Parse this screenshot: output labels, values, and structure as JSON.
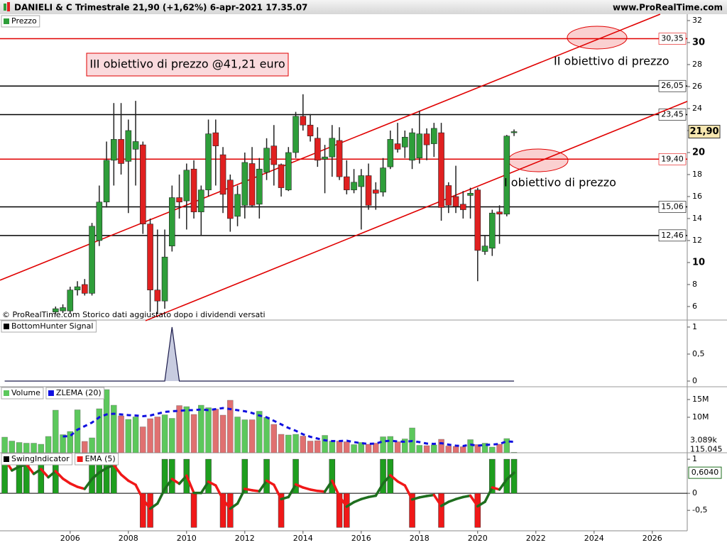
{
  "chart_data": [
    {
      "type": "candlestick",
      "title": "DANIELI & C Trimestrale 21,90 (+1,62%) 6-apr-2021 17.35.07",
      "source": "www.ProRealTime.com",
      "series_name": "Prezzo",
      "footnote": "© ProRealTime.com  Storico dati aggiustato dopo i dividendi versati",
      "x": [
        2003.75,
        2004,
        2004.25,
        2004.5,
        2004.75,
        2005,
        2005.25,
        2005.5,
        2005.75,
        2006,
        2006.25,
        2006.5,
        2006.75,
        2007,
        2007.25,
        2007.5,
        2007.75,
        2008,
        2008.25,
        2008.5,
        2008.75,
        2009,
        2009.25,
        2009.5,
        2009.75,
        2010,
        2010.25,
        2010.5,
        2010.75,
        2011,
        2011.25,
        2011.5,
        2011.75,
        2012,
        2012.25,
        2012.5,
        2012.75,
        2013,
        2013.25,
        2013.5,
        2013.75,
        2014,
        2014.25,
        2014.5,
        2014.75,
        2015,
        2015.25,
        2015.5,
        2015.75,
        2016,
        2016.25,
        2016.5,
        2016.75,
        2017,
        2017.25,
        2017.5,
        2017.75,
        2018,
        2018.25,
        2018.5,
        2018.75,
        2019,
        2019.25,
        2019.5,
        2019.75,
        2020,
        2020.25,
        2020.5,
        2020.75,
        2021,
        2021.25
      ],
      "open": [
        null,
        null,
        null,
        null,
        null,
        null,
        null,
        5.5,
        5.6,
        5.6,
        7.5,
        8,
        7.2,
        12,
        15.5,
        19.3,
        21.2,
        19.2,
        20.3,
        20.7,
        13.5,
        7.5,
        6.5,
        11.5,
        15.9,
        15.6,
        18.5,
        14.6,
        16.6,
        21.8,
        19.8,
        17.5,
        14.2,
        15.2,
        19,
        15.3,
        18.2,
        20.6,
        18.9,
        16.6,
        20,
        23.3,
        22.5,
        21.3,
        19.4,
        19.6,
        21.1,
        17.8,
        16.6,
        16.9,
        17.9,
        16.6,
        16.4,
        18.7,
        20.8,
        20.5,
        19.3,
        19.5,
        21.7,
        20.8,
        21.8,
        17,
        16,
        15.3,
        16.1,
        16.6,
        11,
        11.3,
        14.6,
        14.4,
        21.8
      ],
      "high": [
        null,
        null,
        null,
        null,
        null,
        null,
        null,
        6,
        6.2,
        7.8,
        8.3,
        8.5,
        13.6,
        17,
        21,
        24.5,
        24.5,
        23,
        24.7,
        21,
        14,
        13,
        13,
        17,
        18,
        19,
        19.3,
        17,
        23,
        23,
        20.5,
        18,
        17,
        20,
        20.5,
        19.5,
        21.3,
        22.5,
        19,
        20.5,
        23.7,
        25.3,
        23.5,
        22.3,
        20.7,
        22.5,
        22.3,
        19.3,
        18.5,
        18.5,
        19,
        17.3,
        19.5,
        22,
        22.7,
        22,
        22.2,
        23.8,
        22.2,
        22.7,
        22.7,
        17.3,
        18.8,
        16.5,
        16.8,
        16.8,
        12.5,
        14.8,
        15.2,
        21.6,
        22.1
      ],
      "low": [
        null,
        null,
        null,
        null,
        null,
        null,
        null,
        5.3,
        5.4,
        5.4,
        7,
        7,
        7,
        11.5,
        15,
        17,
        18,
        14.5,
        17,
        12.6,
        5.5,
        5.3,
        5.8,
        11,
        14,
        13,
        14,
        12.5,
        16,
        17,
        14.5,
        12.8,
        13.3,
        14,
        15,
        14,
        17.5,
        17,
        16,
        16.5,
        19.5,
        22,
        21,
        18.7,
        16.3,
        17.8,
        17.5,
        16.2,
        16.3,
        13,
        14.8,
        14.8,
        16,
        18.5,
        20,
        19.5,
        18.5,
        19,
        19.3,
        19.6,
        13.8,
        14.5,
        14.5,
        14,
        14,
        8.3,
        10.7,
        10.6,
        11.7,
        14.2,
        21.5
      ],
      "close": [
        null,
        null,
        null,
        null,
        null,
        null,
        null,
        5.8,
        5.9,
        7.5,
        7.8,
        7.2,
        13.3,
        15.5,
        19.3,
        21.2,
        19,
        22,
        21,
        13.5,
        7.5,
        6.5,
        10.5,
        15.9,
        15.5,
        18.4,
        14.6,
        16.6,
        21.7,
        20.6,
        16.2,
        14,
        16.2,
        19.1,
        15.2,
        18.5,
        20.4,
        18.9,
        16.8,
        20,
        23.3,
        22.5,
        21.5,
        19.3,
        19.6,
        21.3,
        17.8,
        16.6,
        17.3,
        17.9,
        15.2,
        16.3,
        18.6,
        21.2,
        20.3,
        21.4,
        21.8,
        21.7,
        20.7,
        22.2,
        15,
        15.2,
        15.1,
        14.8,
        16.3,
        11.1,
        11.5,
        14.5,
        14.4,
        21.5,
        21.9
      ],
      "last_label": "21,90",
      "up_color": "#2e9e3a",
      "down_color": "#e02020",
      "levels": [
        {
          "value": 30.35,
          "label": "30,35",
          "color": "#e00000"
        },
        {
          "value": 26.05,
          "label": "26,05",
          "color": "#000000"
        },
        {
          "value": 23.45,
          "label": "23,45",
          "color": "#000000"
        },
        {
          "value": 19.4,
          "label": "19,40",
          "color": "#e00000"
        },
        {
          "value": 15.06,
          "label": "15,06",
          "color": "#000000"
        },
        {
          "value": 12.46,
          "label": "12,46",
          "color": "#000000"
        }
      ],
      "trendlines": [
        {
          "x": [
            2003.59,
            2026.27
          ],
          "y": [
            8.39,
            32.58
          ]
        },
        {
          "x": [
            2008.59,
            2027.2
          ],
          "y": [
            4.71,
            24.65
          ]
        }
      ],
      "trend_color": "#e00000",
      "annotations": [
        "III obiettivo di prezzo @41,21 euro",
        "II obiettivo di prezzo",
        "I obiettivo di prezzo"
      ],
      "xlim": [
        2003.59,
        2027.2
      ],
      "xticks": [
        2006,
        2008,
        2010,
        2012,
        2014,
        2016,
        2018,
        2020,
        2022,
        2024,
        2026
      ],
      "ylim": [
        4.77,
        32.58
      ],
      "yticks": [
        6,
        8,
        10,
        12,
        14,
        16,
        18,
        20,
        22,
        24,
        26,
        28,
        30,
        32
      ]
    },
    {
      "type": "line",
      "series": [
        {
          "name": "BottomHunter Signal",
          "color": "#1a1a4a",
          "values": [
            0,
            0,
            0,
            0,
            0,
            0,
            0,
            0,
            0,
            0,
            0,
            0,
            0,
            0,
            0,
            0,
            0,
            0,
            0,
            0,
            0,
            0,
            0,
            1,
            0,
            0,
            0,
            0,
            0,
            0,
            0,
            0,
            0,
            0,
            0,
            0,
            0,
            0,
            0,
            0,
            0,
            0,
            0,
            0,
            0,
            0,
            0,
            0,
            0,
            0,
            0,
            0,
            0,
            0,
            0,
            0,
            0,
            0,
            0,
            0,
            0,
            0,
            0,
            0,
            0,
            0,
            0,
            0,
            0,
            0,
            0
          ]
        }
      ],
      "ylim": [
        -0.105,
        1.13
      ],
      "yticks": [
        0,
        {
          "value": 0.5,
          "label": "0,5"
        },
        1
      ]
    },
    {
      "type": "volume",
      "series": [
        {
          "name": "Volume",
          "color": "#5cc85c",
          "values": [
            4400000,
            3300000,
            2900000,
            2700000,
            2700000,
            2400000,
            4600000,
            12000000,
            5100000,
            6000000,
            12100000,
            3200000,
            4200000,
            12400000,
            17800000,
            13400000,
            10400000,
            9400000,
            10100000,
            7300000,
            9600000,
            10100000,
            10700000,
            9700000,
            13300000,
            13000000,
            10800000,
            13400000,
            12700000,
            12300000,
            10600000,
            14800000,
            10100000,
            9300000,
            9300000,
            11700000,
            10000000,
            8000000,
            5200000,
            5000000,
            5200000,
            4700000,
            3300000,
            3400000,
            4900000,
            3300000,
            3300000,
            3100000,
            2300000,
            2900000,
            2400000,
            2700000,
            4500000,
            4600000,
            3100000,
            3900000,
            7000000,
            2100000,
            2000000,
            2200000,
            3800000,
            1900000,
            1800000,
            1700000,
            3700000,
            2300000,
            2700000,
            1600000,
            2400000,
            4000000,
            115045
          ],
          "last_label": "115.045"
        },
        {
          "name": "ZLEMA (20)",
          "color": "#1010e0",
          "values": [
            null,
            null,
            null,
            null,
            null,
            null,
            null,
            null,
            4600000,
            4700000,
            6500000,
            7500000,
            8500000,
            10000000,
            10800000,
            11000000,
            10800000,
            10600000,
            10500000,
            10300000,
            10500000,
            11000000,
            11500000,
            11700000,
            11800000,
            12000000,
            12000000,
            12200000,
            12000000,
            12300000,
            12600000,
            12300000,
            12000000,
            11700000,
            11200000,
            10500000,
            10000000,
            9000000,
            8000000,
            7000000,
            6200000,
            5200000,
            4500000,
            4000000,
            3500000,
            3300000,
            3300000,
            3400000,
            3000000,
            2700000,
            2500000,
            2600000,
            3200000,
            3400000,
            3200000,
            3100000,
            3300000,
            3000000,
            2600000,
            2500000,
            2700000,
            2300000,
            2000000,
            1900000,
            2300000,
            2000000,
            2200000,
            2300000,
            2500000,
            3200000,
            3089000
          ],
          "last_label": "3.089k"
        }
      ],
      "down_color": "#e07070",
      "ylim": [
        0,
        18600000
      ],
      "yticks": [
        {
          "value": 10000000,
          "label": "10M"
        },
        {
          "value": 15000000,
          "label": "15M"
        }
      ]
    },
    {
      "type": "swing",
      "series": [
        {
          "name": "SwingIndicator",
          "color": "#1e9e1e",
          "values": [
            1,
            0,
            1,
            1,
            0,
            1,
            0,
            1,
            0,
            0,
            0,
            0,
            1,
            1,
            1,
            1,
            0,
            0,
            0,
            -1,
            -1,
            0,
            1,
            1,
            0,
            1,
            -1,
            0,
            1,
            0,
            -1,
            -1,
            0,
            1,
            0,
            0,
            1,
            0,
            -1,
            0,
            1,
            0,
            0,
            0,
            0,
            1,
            -1,
            -1,
            0,
            0,
            0,
            0,
            1,
            1,
            0,
            0,
            -1,
            0,
            0,
            0,
            -1,
            0,
            0,
            0,
            0,
            -1,
            0,
            1,
            0,
            1,
            1
          ]
        },
        {
          "name": "EMA (5)",
          "color": "#1e6e1e",
          "values": [
            1,
            0.67,
            0.78,
            0.85,
            0.57,
            0.71,
            0.47,
            0.65,
            0.43,
            0.29,
            0.19,
            0.13,
            0.42,
            0.61,
            0.74,
            0.83,
            0.55,
            0.37,
            0.25,
            -0.17,
            -0.45,
            -0.3,
            0.13,
            0.42,
            0.28,
            0.52,
            0.01,
            0.01,
            0.34,
            0.23,
            -0.18,
            -0.45,
            -0.3,
            0.13,
            0.09,
            0.06,
            0.37,
            0.25,
            -0.17,
            -0.11,
            0.26,
            0.17,
            0.11,
            0.07,
            0.05,
            0.37,
            -0.09,
            -0.39,
            -0.26,
            -0.17,
            -0.11,
            -0.07,
            0.29,
            0.53,
            0.35,
            0.23,
            -0.18,
            -0.12,
            -0.08,
            -0.05,
            -0.37,
            -0.25,
            -0.17,
            -0.11,
            -0.07,
            -0.38,
            -0.25,
            0.17,
            0.11,
            0.41,
            0.604
          ],
          "last_label": "0,6040"
        }
      ],
      "down_color": "#f01818",
      "ylim": [
        -1.1,
        1.19
      ],
      "yticks": [
        {
          "value": -0.5,
          "label": "-0,5"
        },
        0,
        1
      ]
    }
  ]
}
